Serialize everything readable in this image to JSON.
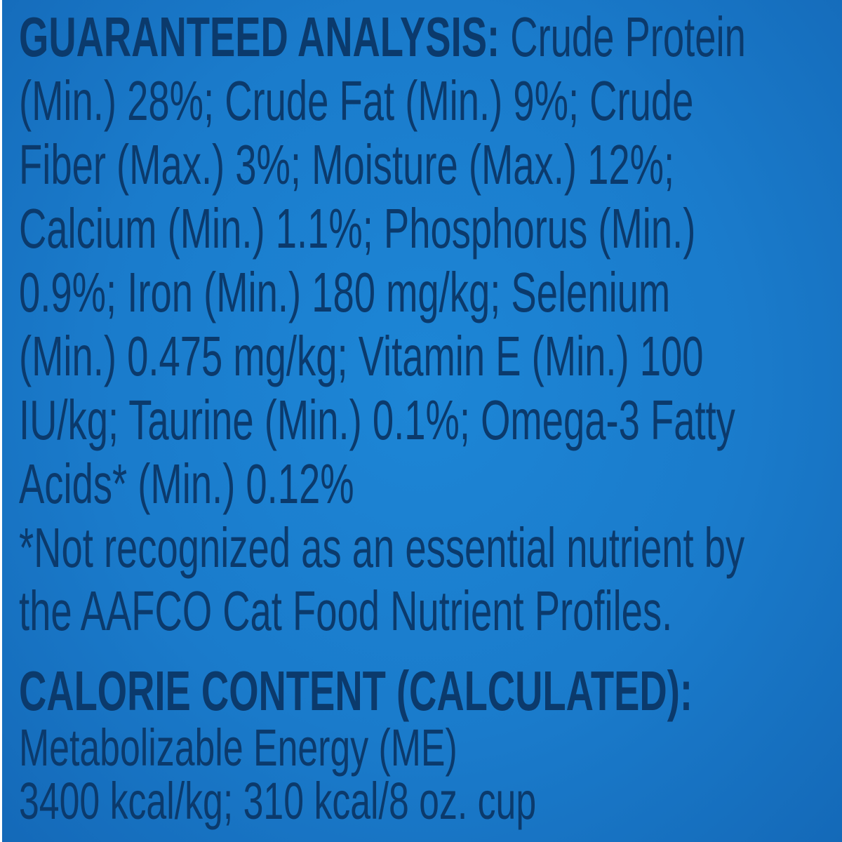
{
  "analysis": {
    "heading": "GUARANTEED ANALYSIS:",
    "lines": [
      " Crude Protein",
      "(Min.) 28%; Crude Fat (Min.) 9%; Crude",
      "Fiber (Max.) 3%; Moisture (Max.) 12%;",
      "Calcium (Min.) 1.1%; Phosphorus (Min.)",
      "0.9%; Iron (Min.) 180 mg/kg; Selenium",
      "(Min.) 0.475 mg/kg; Vitamin E (Min.) 100",
      "IU/kg; Taurine (Min.) 0.1%; Omega-3 Fatty",
      "Acids* (Min.) 0.12%"
    ],
    "footnote": [
      "*Not recognized as an essential nutrient by",
      "the AAFCO Cat Food Nutrient Profiles."
    ]
  },
  "calorie": {
    "heading": "CALORIE CONTENT (CALCULATED):",
    "lines": [
      "Metabolizable Energy (ME)",
      "3400 kcal/kg; 310 kcal/8 oz. cup"
    ]
  },
  "colors": {
    "background": "#1a7bcb",
    "text": "#0b3a6c"
  }
}
